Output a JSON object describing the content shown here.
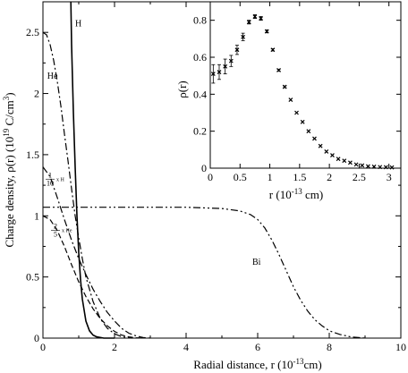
{
  "chart_data": [
    {
      "type": "line",
      "xlabel_main": "Radial distance, r (10",
      "xlabel_exp": "-13",
      "xlabel_end": "cm)",
      "ylabel_main": "Charge density, ρ(r) (10",
      "ylabel_exp": "19",
      "ylabel_mid": " C/cm",
      "ylabel_pow": "3",
      "ylabel_end": ")",
      "xlim": [
        0,
        10
      ],
      "ylim": [
        0,
        2.75
      ],
      "xticks": [
        "0",
        "2",
        "4",
        "6",
        "8",
        "10"
      ],
      "yticks": [
        "0",
        "0.5",
        "1",
        "1.5",
        "2",
        "2.5"
      ],
      "xtick_values": [
        0,
        2,
        4,
        6,
        8,
        10
      ],
      "ytick_values": [
        0,
        0.5,
        1,
        1.5,
        2,
        2.5
      ],
      "series": [
        {
          "name": "H",
          "style": "solid",
          "x": [
            0.78,
            0.8,
            0.85,
            0.9,
            0.95,
            1.0,
            1.05,
            1.1,
            1.2,
            1.3,
            1.4,
            1.5,
            1.7,
            2.0
          ],
          "y": [
            2.75,
            2.4,
            1.85,
            1.4,
            1.0,
            0.7,
            0.48,
            0.32,
            0.14,
            0.06,
            0.025,
            0.01,
            0.0,
            0.0
          ]
        },
        {
          "name": "He",
          "style": "dashdot",
          "x": [
            0.0,
            0.1,
            0.2,
            0.3,
            0.4,
            0.5,
            0.6,
            0.7,
            0.8,
            0.9,
            1.0,
            1.1,
            1.2,
            1.4,
            1.6,
            1.8,
            2.0,
            2.2,
            2.5
          ],
          "y": [
            2.5,
            2.48,
            2.4,
            2.27,
            2.1,
            1.9,
            1.67,
            1.45,
            1.22,
            1.0,
            0.82,
            0.65,
            0.5,
            0.3,
            0.16,
            0.08,
            0.035,
            0.012,
            0.0
          ]
        },
        {
          "name": "H (1/10 scaled)",
          "style": "dashdot",
          "x": [
            0.0,
            0.2,
            0.4,
            0.6,
            0.8,
            1.0,
            1.2,
            1.4,
            1.6,
            1.8,
            2.0,
            2.2,
            2.4,
            2.6,
            2.8,
            3.0
          ],
          "y": [
            1.4,
            1.32,
            1.15,
            0.97,
            0.8,
            0.65,
            0.52,
            0.4,
            0.3,
            0.21,
            0.14,
            0.08,
            0.04,
            0.018,
            0.005,
            0.0
          ]
        },
        {
          "name": "He (2/5 scaled)",
          "style": "dashed",
          "x": [
            0.0,
            0.2,
            0.4,
            0.6,
            0.8,
            1.0,
            1.2,
            1.4,
            1.6,
            1.8,
            2.0,
            2.2,
            2.4,
            2.6,
            2.8
          ],
          "y": [
            1.0,
            0.97,
            0.88,
            0.75,
            0.6,
            0.46,
            0.34,
            0.24,
            0.16,
            0.1,
            0.055,
            0.025,
            0.01,
            0.003,
            0.0
          ]
        },
        {
          "name": "Bi",
          "style": "dashdotdot",
          "x": [
            0.0,
            1.0,
            2.0,
            3.0,
            4.0,
            5.0,
            5.5,
            5.8,
            6.0,
            6.2,
            6.4,
            6.6,
            6.8,
            7.0,
            7.2,
            7.4,
            7.6,
            7.8,
            8.0,
            8.3,
            8.6,
            9.0
          ],
          "y": [
            1.07,
            1.07,
            1.07,
            1.07,
            1.07,
            1.06,
            1.04,
            1.01,
            0.97,
            0.9,
            0.8,
            0.68,
            0.55,
            0.42,
            0.31,
            0.22,
            0.15,
            0.1,
            0.06,
            0.03,
            0.01,
            0.0
          ]
        }
      ],
      "labels": [
        {
          "text": "H",
          "x": 0.9,
          "y": 2.55
        },
        {
          "text": "He",
          "x": 0.12,
          "y": 2.12
        },
        {
          "text": "Bi",
          "x": 5.85,
          "y": 0.6
        }
      ],
      "frac_labels": [
        {
          "num": "1",
          "den": "10",
          "suffix": "x H",
          "x": 0.05,
          "y": 1.3
        },
        {
          "num": "2",
          "den": "5",
          "suffix": "x He",
          "x": 0.2,
          "y": 0.88
        }
      ]
    },
    {
      "type": "scatter",
      "title": "",
      "ylabel": "ρ(r)",
      "xlabel_main": "r (10",
      "xlabel_exp": "-13",
      "xlabel_end": " cm)",
      "xlim": [
        0,
        3.2
      ],
      "ylim": [
        0,
        0.9
      ],
      "xticks": [
        "0",
        "0.5",
        "1",
        "1.5",
        "2",
        "2.5",
        "3"
      ],
      "yticks": [
        "0",
        "0.2",
        "0.4",
        "0.6",
        "0.8"
      ],
      "xtick_values": [
        0,
        0.5,
        1,
        1.5,
        2,
        2.5,
        3
      ],
      "ytick_values": [
        0,
        0.2,
        0.4,
        0.6,
        0.8
      ],
      "points": [
        {
          "x": 0.05,
          "y": 0.51,
          "err": 0.05
        },
        {
          "x": 0.15,
          "y": 0.52,
          "err": 0.04
        },
        {
          "x": 0.25,
          "y": 0.55,
          "err": 0.04
        },
        {
          "x": 0.35,
          "y": 0.58,
          "err": 0.03
        },
        {
          "x": 0.45,
          "y": 0.64,
          "err": 0.025
        },
        {
          "x": 0.55,
          "y": 0.71,
          "err": 0.02
        },
        {
          "x": 0.65,
          "y": 0.79,
          "err": 0.01
        },
        {
          "x": 0.75,
          "y": 0.82,
          "err": 0.01
        },
        {
          "x": 0.85,
          "y": 0.81,
          "err": 0.01
        },
        {
          "x": 0.95,
          "y": 0.74,
          "err": 0.008
        },
        {
          "x": 1.05,
          "y": 0.64,
          "err": 0.006
        },
        {
          "x": 1.15,
          "y": 0.53,
          "err": 0.005
        },
        {
          "x": 1.25,
          "y": 0.44,
          "err": 0.005
        },
        {
          "x": 1.35,
          "y": 0.37,
          "err": 0.0
        },
        {
          "x": 1.45,
          "y": 0.3,
          "err": 0.0
        },
        {
          "x": 1.55,
          "y": 0.25,
          "err": 0.0
        },
        {
          "x": 1.65,
          "y": 0.2,
          "err": 0.0
        },
        {
          "x": 1.75,
          "y": 0.16,
          "err": 0.0
        },
        {
          "x": 1.85,
          "y": 0.12,
          "err": 0.0
        },
        {
          "x": 1.95,
          "y": 0.09,
          "err": 0.0
        },
        {
          "x": 2.05,
          "y": 0.07,
          "err": 0.0
        },
        {
          "x": 2.15,
          "y": 0.05,
          "err": 0.0
        },
        {
          "x": 2.25,
          "y": 0.04,
          "err": 0.0
        },
        {
          "x": 2.35,
          "y": 0.03,
          "err": 0.0
        },
        {
          "x": 2.45,
          "y": 0.02,
          "err": 0.0
        },
        {
          "x": 2.55,
          "y": 0.015,
          "err": 0.0
        },
        {
          "x": 2.65,
          "y": 0.01,
          "err": 0.0
        },
        {
          "x": 2.75,
          "y": 0.008,
          "err": 0.0
        },
        {
          "x": 2.85,
          "y": 0.006,
          "err": 0.0
        },
        {
          "x": 2.95,
          "y": 0.005,
          "err": 0.0
        },
        {
          "x": 3.05,
          "y": 0.004,
          "err": 0.0
        }
      ]
    }
  ]
}
